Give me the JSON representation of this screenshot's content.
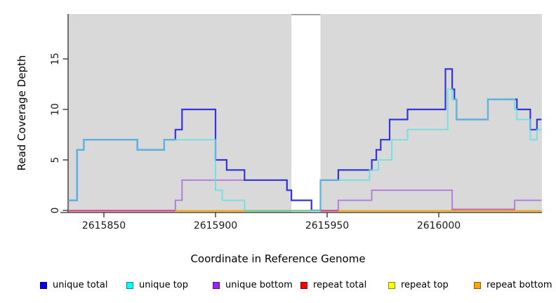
{
  "axis": {
    "x_title": "Coordinate in Reference Genome",
    "y_title": "Read Coverage Depth",
    "x_ticks": [
      {
        "label": "2615850",
        "coord": 2615850
      },
      {
        "label": "2615900",
        "coord": 2615900
      },
      {
        "label": "2615950",
        "coord": 2615950
      },
      {
        "label": "2616000",
        "coord": 2616000
      }
    ],
    "y_ticks": [
      {
        "label": "0",
        "value": 0
      },
      {
        "label": "5",
        "value": 5
      },
      {
        "label": "10",
        "value": 10
      },
      {
        "label": "15",
        "value": 15
      }
    ]
  },
  "legend": [
    {
      "label": "unique total",
      "color": "#0000EE"
    },
    {
      "label": "unique top",
      "color": "#00FFFF"
    },
    {
      "label": "unique bottom",
      "color": "#A020F0"
    },
    {
      "label": "repeat total",
      "color": "#FF0000"
    },
    {
      "label": "repeat top",
      "color": "#FFFF00"
    },
    {
      "label": "repeat bottom",
      "color": "#FFA500"
    }
  ],
  "chart_data": {
    "type": "step-line",
    "title": "",
    "xlabel": "Coordinate in Reference Genome",
    "ylabel": "Read Coverage Depth",
    "xlim": [
      2615834,
      2616046
    ],
    "ylim": [
      0,
      19.5
    ],
    "grid": false,
    "panel_background": "#D9D9D9",
    "gap_region": {
      "start": 2615934,
      "end": 2615947,
      "fill": "#FFFFFF",
      "top_border": "#8F8F8F"
    },
    "x_end": 2616046,
    "series": [
      {
        "name": "unique total",
        "line_color": "#3636D8",
        "points": [
          [
            2615834,
            1
          ],
          [
            2615838,
            6
          ],
          [
            2615841,
            7
          ],
          [
            2615865,
            6
          ],
          [
            2615877,
            7
          ],
          [
            2615882,
            8
          ],
          [
            2615885,
            10
          ],
          [
            2615900,
            5
          ],
          [
            2615905,
            4
          ],
          [
            2615913,
            3
          ],
          [
            2615932,
            2
          ],
          [
            2615934,
            1
          ],
          [
            2615943,
            0
          ],
          [
            2615947,
            3
          ],
          [
            2615955,
            4
          ],
          [
            2615970,
            5
          ],
          [
            2615972,
            6
          ],
          [
            2615974,
            7
          ],
          [
            2615978,
            9
          ],
          [
            2615986,
            10
          ],
          [
            2616003,
            14
          ],
          [
            2616006,
            12
          ],
          [
            2616007,
            11
          ],
          [
            2616008,
            9
          ],
          [
            2616022,
            11
          ],
          [
            2616035,
            10
          ],
          [
            2616041,
            8
          ],
          [
            2616044,
            9
          ]
        ]
      },
      {
        "name": "unique top",
        "line_color": "#5FE1E1",
        "points": [
          [
            2615834,
            1
          ],
          [
            2615838,
            6
          ],
          [
            2615841,
            7
          ],
          [
            2615865,
            6
          ],
          [
            2615877,
            7
          ],
          [
            2615900,
            2
          ],
          [
            2615903,
            1
          ],
          [
            2615913,
            0
          ],
          [
            2615947,
            3
          ],
          [
            2615969,
            4
          ],
          [
            2615973,
            5
          ],
          [
            2615979,
            7
          ],
          [
            2615986,
            8
          ],
          [
            2616004,
            12
          ],
          [
            2616006,
            11
          ],
          [
            2616008,
            9
          ],
          [
            2616022,
            11
          ],
          [
            2616034,
            10
          ],
          [
            2616035,
            9
          ],
          [
            2616041,
            7
          ],
          [
            2616044,
            8
          ]
        ]
      },
      {
        "name": "unique bottom",
        "line_color": "#B07CD8",
        "points": [
          [
            2615834,
            0
          ],
          [
            2615882,
            1
          ],
          [
            2615885,
            3
          ],
          [
            2615932,
            2
          ],
          [
            2615934,
            1
          ],
          [
            2615943,
            0
          ],
          [
            2615955,
            1
          ],
          [
            2615970,
            2
          ],
          [
            2616006,
            0
          ],
          [
            2616034,
            1
          ]
        ]
      },
      {
        "name": "repeat total",
        "line_color": "#D94A70",
        "points": [
          [
            2615834,
            0
          ]
        ]
      },
      {
        "name": "repeat top",
        "line_color": "#FFFF00",
        "points": [
          [
            2615882,
            0
          ]
        ]
      },
      {
        "name": "repeat bottom",
        "line_color": "#FFA500",
        "points": [
          [
            2615882,
            0
          ]
        ]
      }
    ],
    "baseline_segments": [
      {
        "from": 2615834,
        "to": 2615882,
        "color": "#DD4A74",
        "note": "repeat total + unique bottom overlap"
      },
      {
        "from": 2615882,
        "to": 2615913,
        "color": "#FFA500",
        "note": "repeat bottom"
      },
      {
        "from": 2615913,
        "to": 2615943,
        "color": "#7CC87C",
        "note": "unique top over repeat bottom"
      },
      {
        "from": 2615947,
        "to": 2615955,
        "color": "#DD4A74",
        "note": "repeat total + unique bottom overlap"
      },
      {
        "from": 2615955,
        "to": 2616046,
        "color": "#FFA500",
        "note": "repeat bottom"
      }
    ],
    "baseline_overlays": [
      {
        "from": 2616006,
        "to": 2616034,
        "color": "#BF68B8",
        "note": "unique bottom at zero"
      }
    ]
  }
}
